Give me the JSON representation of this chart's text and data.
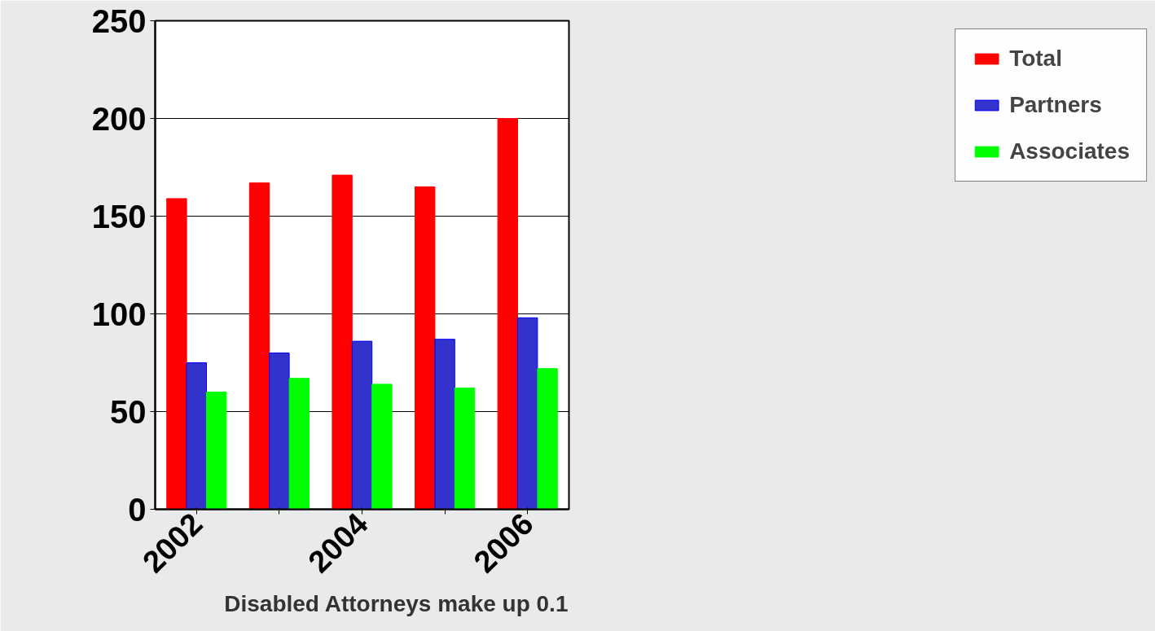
{
  "chart_data": {
    "type": "bar",
    "categories": [
      "2002",
      null,
      "2004",
      null,
      "2006"
    ],
    "series": [
      {
        "name": "Total",
        "color": "#ff0000",
        "values": [
          159,
          167,
          171,
          165,
          200
        ]
      },
      {
        "name": "Partners",
        "color": "#3333cc",
        "values": [
          75,
          80,
          86,
          87,
          98
        ]
      },
      {
        "name": "Associates",
        "color": "#00ff00",
        "values": [
          60,
          67,
          64,
          62,
          72
        ]
      }
    ],
    "ylim": [
      0,
      250
    ],
    "yticks": [
      0,
      50,
      100,
      150,
      200,
      250
    ],
    "grid": "y",
    "legend": "right",
    "annotations": [
      "Disabled Attorneys make up 0.1"
    ]
  }
}
